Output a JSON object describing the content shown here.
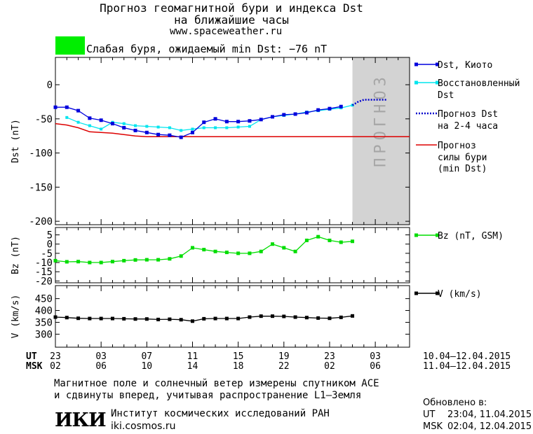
{
  "header": {
    "title_line1": "Прогноз геомагнитной бури и индекса Dst",
    "title_line2": "на ближайшие часы",
    "site": "www.spaceweather.ru",
    "storm_color": "#00ee00",
    "storm_text": "Слабая буря, ожидаемый min Dst: −76 nT"
  },
  "colors": {
    "dst_kyoto": "#0000dd",
    "dst_restored": "#00e5ee",
    "dst_forecast": "#0000cc",
    "storm_forecast": "#dd0000",
    "bz": "#00dd00",
    "v": "#000000",
    "forecast_band": "#d3d3d3",
    "forecast_text": "#a6a6a6"
  },
  "forecast_band_label": "ПРОГНОЗ",
  "chart_data": [
    {
      "type": "line",
      "panel": "dst",
      "ylabel": "Dst (nT)",
      "ylim": [
        -205,
        40
      ],
      "yticks": [
        0,
        -50,
        -100,
        -150,
        -200
      ],
      "xlim": [
        0,
        31
      ],
      "forecast_band_x": [
        26,
        31
      ],
      "series": [
        {
          "name": "Dst, Киото",
          "marker": "square",
          "x": [
            0,
            1,
            2,
            3,
            4,
            5,
            6,
            7,
            8,
            9,
            10,
            11,
            12,
            13,
            14,
            15,
            16,
            17,
            18,
            19,
            20,
            21,
            22,
            23,
            24,
            25
          ],
          "values": [
            -33,
            -33,
            -38,
            -49,
            -52,
            -57,
            -63,
            -67,
            -70,
            -73,
            -74,
            -77,
            -70,
            -55,
            -50,
            -54,
            -54,
            -53,
            -51,
            -47,
            -44,
            -43,
            -41,
            -37,
            -35,
            -32
          ]
        },
        {
          "name": "Восстановленный Dst",
          "marker": "square",
          "x": [
            1,
            2,
            3,
            4,
            5,
            6,
            7,
            8,
            9,
            10,
            11,
            12,
            13,
            14,
            15,
            16,
            17,
            18,
            19,
            20,
            21,
            22,
            23,
            24,
            25,
            26
          ],
          "values": [
            -48,
            -55,
            -60,
            -65,
            -55,
            -57,
            -60,
            -61,
            -62,
            -63,
            -67,
            -65,
            -63,
            -63,
            -63,
            -62,
            -61,
            -51,
            -47,
            -45,
            -43,
            -40,
            -38,
            -36,
            -34,
            -30
          ]
        },
        {
          "name": "Прогноз Dst на 2-4 часа",
          "style": "dotted",
          "x": [
            26,
            26.5,
            27,
            28,
            29
          ],
          "values": [
            -30,
            -25,
            -22,
            -22,
            -22
          ]
        },
        {
          "name": "Прогноз силы бури (min Dst)",
          "x": [
            0,
            1,
            2,
            3,
            4,
            5,
            6,
            7,
            8,
            9,
            10,
            11,
            12,
            13,
            14,
            15,
            16,
            17,
            18,
            19,
            20,
            21,
            22,
            23,
            24,
            25,
            26,
            27,
            28,
            29,
            30,
            31
          ],
          "values": [
            -57,
            -59,
            -63,
            -69,
            -70,
            -71,
            -73,
            -75,
            -76,
            -76,
            -76,
            -76,
            -76,
            -76,
            -76,
            -76,
            -76,
            -76,
            -76,
            -76,
            -76,
            -76,
            -76,
            -76,
            -76,
            -76,
            -76,
            -76,
            -76,
            -76,
            -76,
            -76
          ]
        }
      ],
      "legend": [
        {
          "label1": "Dst, Киото",
          "label2": ""
        },
        {
          "label1": "Восстановленный",
          "label2": "Dst"
        },
        {
          "label1": "Прогноз Dst",
          "label2": "на 2-4 часа"
        },
        {
          "label1": "Прогноз",
          "label2": "силы бури",
          "label3": "(min Dst)"
        }
      ]
    },
    {
      "type": "line",
      "panel": "bz",
      "ylabel": "Bz (nT)",
      "ylim": [
        -21,
        9
      ],
      "yticks": [
        5,
        0,
        -5,
        -10,
        -15,
        -20
      ],
      "ytick_labels": [
        "5",
        "0",
        "-5",
        "-10",
        "-15",
        "-20"
      ],
      "xlim": [
        0,
        31
      ],
      "series": [
        {
          "name": "Bz (nT, GSM)",
          "marker": "square",
          "x": [
            0,
            1,
            2,
            3,
            4,
            5,
            6,
            7,
            8,
            9,
            10,
            11,
            12,
            13,
            14,
            15,
            16,
            17,
            18,
            19,
            20,
            21,
            22,
            23,
            24,
            25,
            26
          ],
          "values": [
            -9,
            -9.6,
            -9.5,
            -10,
            -10,
            -9.5,
            -9,
            -8.6,
            -8.5,
            -8.5,
            -8,
            -6.5,
            -2,
            -3,
            -4,
            -4.5,
            -5,
            -5,
            -4,
            0,
            -2,
            -4,
            2,
            4,
            2,
            1,
            1.5
          ]
        }
      ],
      "legend": [
        {
          "label1": "Bz (nT, GSM)",
          "label2": ""
        }
      ]
    },
    {
      "type": "line",
      "panel": "v",
      "ylabel": "V (km/s)",
      "ylim": [
        245,
        505
      ],
      "yticks": [
        450,
        400,
        350,
        300
      ],
      "xlim": [
        0,
        31
      ],
      "series": [
        {
          "name": "V (km/s)",
          "marker": "square",
          "x": [
            0,
            1,
            2,
            3,
            4,
            5,
            6,
            7,
            8,
            9,
            10,
            11,
            12,
            13,
            14,
            15,
            16,
            17,
            18,
            19,
            20,
            21,
            22,
            23,
            24,
            25,
            26
          ],
          "values": [
            372,
            370,
            367,
            366,
            366,
            366,
            365,
            364,
            364,
            362,
            363,
            361,
            355,
            365,
            366,
            366,
            366,
            372,
            376,
            376,
            375,
            372,
            370,
            368,
            367,
            371,
            377
          ]
        }
      ],
      "legend": [
        {
          "label1": "V (km/s)",
          "label2": ""
        }
      ]
    }
  ],
  "x_axis": {
    "ut_label": "UT",
    "msk_label": "MSK",
    "ut_ticks": [
      "23",
      "03",
      "07",
      "11",
      "15",
      "19",
      "23",
      "03"
    ],
    "msk_ticks": [
      "02",
      "06",
      "10",
      "14",
      "18",
      "22",
      "02",
      "06"
    ],
    "ut_range": "10.04–12.04.2015",
    "msk_range": "11.04–12.04.2015"
  },
  "footer": {
    "note_line1": "Магнитное поле и солнечный ветер измерены спутником ACE",
    "note_line2": "и сдвинуты вперед, учитывая распространение L1–Земля",
    "logo_text": "ИКИ",
    "institute": "Институт космических исследований РАН",
    "institute_url": "iki.cosmos.ru",
    "updated_label": "Обновлено в:",
    "updated_ut_label": "UT",
    "updated_ut": "23:04, 11.04.2015",
    "updated_msk_label": "MSK",
    "updated_msk": "02:04, 12.04.2015"
  }
}
